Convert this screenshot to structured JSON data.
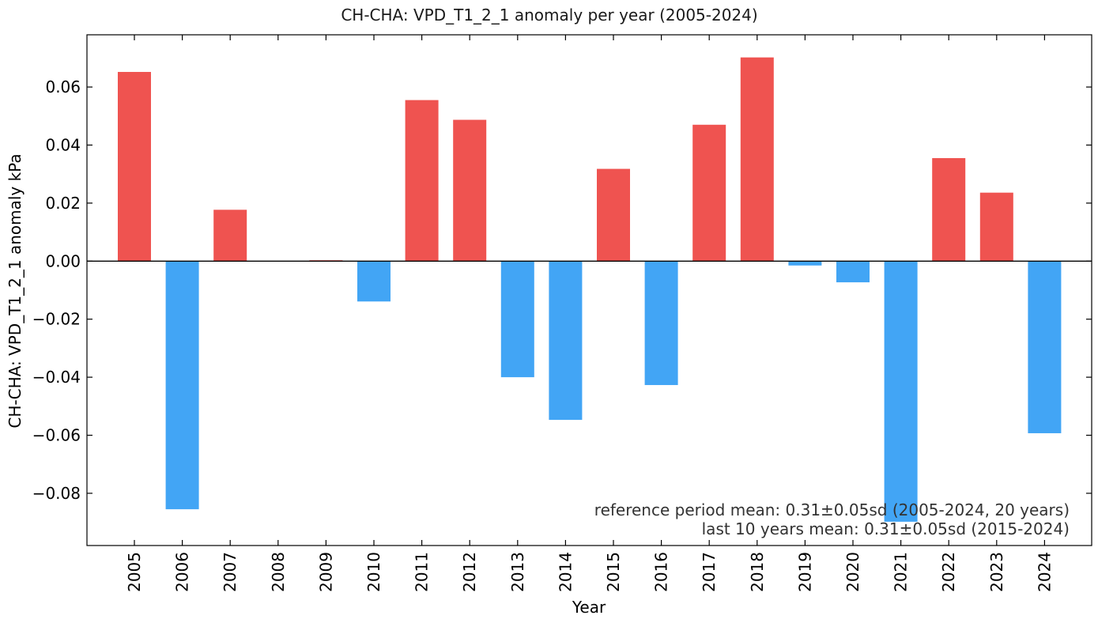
{
  "chart_data": {
    "type": "bar",
    "title": "CH-CHA: VPD_T1_2_1 anomaly per year (2005-2024)",
    "xlabel": "Year",
    "ylabel": "CH-CHA: VPD_T1_2_1 anomaly  kPa",
    "categories": [
      "2005",
      "2006",
      "2007",
      "2008",
      "2009",
      "2010",
      "2011",
      "2012",
      "2013",
      "2014",
      "2015",
      "2016",
      "2017",
      "2018",
      "2019",
      "2020",
      "2021",
      "2022",
      "2023",
      "2024"
    ],
    "values": [
      0.0652,
      -0.0855,
      0.0177,
      0.0,
      0.0003,
      -0.0139,
      0.0555,
      0.0487,
      -0.04,
      -0.0547,
      0.0318,
      -0.0427,
      0.047,
      0.0702,
      -0.0015,
      -0.0073,
      -0.0898,
      0.0355,
      0.0236,
      -0.0593
    ],
    "ylim": [
      -0.098,
      0.078
    ],
    "yticks": [
      -0.08,
      -0.06,
      -0.04,
      -0.02,
      0.0,
      0.02,
      0.04,
      0.06
    ],
    "ytick_labels": [
      "−0.08",
      "−0.06",
      "−0.04",
      "−0.02",
      "0.00",
      "0.02",
      "0.04",
      "0.06"
    ],
    "grid": false,
    "colors": {
      "positive": "#ef5350",
      "negative": "#42a5f5",
      "zero_line": "#000000"
    },
    "annotations": [
      "reference period mean: 0.31±0.05sd (2005-2024, 20 years)",
      "last 10 years mean: 0.31±0.05sd (2015-2024)"
    ]
  }
}
